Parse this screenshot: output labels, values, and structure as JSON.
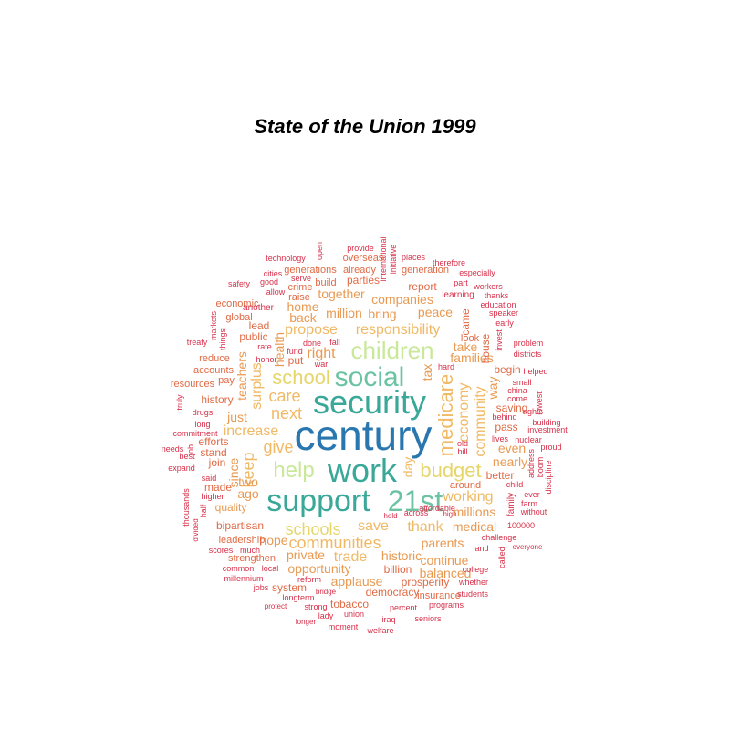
{
  "title": "State of the Union 1999",
  "palette": {
    "darkblue": "#2a77b0",
    "teal": "#3aa898",
    "green": "#6cc3a3",
    "lightgreen": "#c9e89a",
    "yellow": "#e6d66a",
    "lightorange": "#f0b965",
    "orange": "#e99a52",
    "redorange": "#e06a45",
    "red": "#d7304a"
  },
  "words": [
    {
      "text": "century",
      "color": "darkblue"
    },
    {
      "text": "security",
      "color": "teal"
    },
    {
      "text": "support",
      "color": "teal"
    },
    {
      "text": "work",
      "color": "teal"
    },
    {
      "text": "social",
      "color": "green"
    },
    {
      "text": "21st",
      "color": "green"
    },
    {
      "text": "children",
      "color": "lightgreen"
    },
    {
      "text": "help",
      "color": "lightgreen"
    },
    {
      "text": "school",
      "color": "yellow"
    },
    {
      "text": "schools",
      "color": "yellow"
    },
    {
      "text": "budget",
      "color": "yellow"
    },
    {
      "text": "medicare",
      "color": "lightorange"
    },
    {
      "text": "communities",
      "color": "lightorange"
    },
    {
      "text": "responsibility",
      "color": "lightorange"
    },
    {
      "text": "care",
      "color": "lightorange"
    },
    {
      "text": "next",
      "color": "lightorange"
    },
    {
      "text": "give",
      "color": "lightorange"
    },
    {
      "text": "keep",
      "color": "lightorange"
    },
    {
      "text": "increase",
      "color": "lightorange"
    },
    {
      "text": "economy",
      "color": "lightorange"
    },
    {
      "text": "community",
      "color": "lightorange"
    },
    {
      "text": "thank",
      "color": "lightorange"
    },
    {
      "text": "save",
      "color": "lightorange"
    },
    {
      "text": "working",
      "color": "lightorange"
    },
    {
      "text": "trade",
      "color": "lightorange"
    },
    {
      "text": "surplus",
      "color": "lightorange"
    },
    {
      "text": "propose",
      "color": "lightorange"
    },
    {
      "text": "day",
      "color": "lightorange"
    },
    {
      "text": "health",
      "color": "orange"
    },
    {
      "text": "right",
      "color": "orange"
    },
    {
      "text": "teachers",
      "color": "orange"
    },
    {
      "text": "since",
      "color": "orange"
    },
    {
      "text": "nearly",
      "color": "orange"
    },
    {
      "text": "even",
      "color": "orange"
    },
    {
      "text": "take",
      "color": "orange"
    },
    {
      "text": "families",
      "color": "orange"
    },
    {
      "text": "parents",
      "color": "orange"
    },
    {
      "text": "hope",
      "color": "orange"
    },
    {
      "text": "private",
      "color": "orange"
    },
    {
      "text": "historic",
      "color": "orange"
    },
    {
      "text": "opportunity",
      "color": "orange"
    },
    {
      "text": "continue",
      "color": "orange"
    },
    {
      "text": "balanced",
      "color": "orange"
    },
    {
      "text": "applause",
      "color": "orange"
    },
    {
      "text": "medical",
      "color": "orange"
    },
    {
      "text": "millions",
      "color": "orange"
    },
    {
      "text": "million",
      "color": "orange"
    },
    {
      "text": "bring",
      "color": "orange"
    },
    {
      "text": "peace",
      "color": "orange"
    },
    {
      "text": "together",
      "color": "orange"
    },
    {
      "text": "companies",
      "color": "orange"
    },
    {
      "text": "back",
      "color": "orange"
    },
    {
      "text": "home",
      "color": "orange"
    },
    {
      "text": "just",
      "color": "orange"
    },
    {
      "text": "two",
      "color": "orange"
    },
    {
      "text": "ago",
      "color": "orange"
    },
    {
      "text": "quality",
      "color": "orange"
    },
    {
      "text": "way",
      "color": "orange"
    },
    {
      "text": "tax",
      "color": "orange"
    },
    {
      "text": "better",
      "color": "redorange"
    },
    {
      "text": "pass",
      "color": "redorange"
    },
    {
      "text": "saving",
      "color": "redorange"
    },
    {
      "text": "begin",
      "color": "redorange"
    },
    {
      "text": "house",
      "color": "redorange"
    },
    {
      "text": "came",
      "color": "redorange"
    },
    {
      "text": "look",
      "color": "redorange"
    },
    {
      "text": "report",
      "color": "redorange"
    },
    {
      "text": "parties",
      "color": "redorange"
    },
    {
      "text": "already",
      "color": "redorange"
    },
    {
      "text": "overseas",
      "color": "redorange"
    },
    {
      "text": "generation",
      "color": "redorange"
    },
    {
      "text": "generations",
      "color": "redorange"
    },
    {
      "text": "build",
      "color": "redorange"
    },
    {
      "text": "crime",
      "color": "redorange"
    },
    {
      "text": "raise",
      "color": "redorange"
    },
    {
      "text": "lead",
      "color": "redorange"
    },
    {
      "text": "public",
      "color": "redorange"
    },
    {
      "text": "put",
      "color": "redorange"
    },
    {
      "text": "history",
      "color": "redorange"
    },
    {
      "text": "efforts",
      "color": "redorange"
    },
    {
      "text": "stand",
      "color": "redorange"
    },
    {
      "text": "join",
      "color": "redorange"
    },
    {
      "text": "made",
      "color": "redorange"
    },
    {
      "text": "bipartisan",
      "color": "redorange"
    },
    {
      "text": "leadership",
      "color": "redorange"
    },
    {
      "text": "strengthen",
      "color": "redorange"
    },
    {
      "text": "system",
      "color": "redorange"
    },
    {
      "text": "billion",
      "color": "redorange"
    },
    {
      "text": "prosperity",
      "color": "redorange"
    },
    {
      "text": "democracy",
      "color": "redorange"
    },
    {
      "text": "tobacco",
      "color": "redorange"
    },
    {
      "text": "insurance",
      "color": "redorange"
    },
    {
      "text": "around",
      "color": "redorange"
    },
    {
      "text": "economic",
      "color": "redorange"
    },
    {
      "text": "global",
      "color": "redorange"
    },
    {
      "text": "pay",
      "color": "redorange"
    },
    {
      "text": "accounts",
      "color": "redorange"
    },
    {
      "text": "resources",
      "color": "redorange"
    },
    {
      "text": "reduce",
      "color": "redorange"
    },
    {
      "text": "technology",
      "color": "red"
    },
    {
      "text": "open",
      "color": "red"
    },
    {
      "text": "provide",
      "color": "red"
    },
    {
      "text": "international",
      "color": "red"
    },
    {
      "text": "initiative",
      "color": "red"
    },
    {
      "text": "places",
      "color": "red"
    },
    {
      "text": "therefore",
      "color": "red"
    },
    {
      "text": "cities",
      "color": "red"
    },
    {
      "text": "serve",
      "color": "red"
    },
    {
      "text": "especially",
      "color": "red"
    },
    {
      "text": "part",
      "color": "red"
    },
    {
      "text": "workers",
      "color": "red"
    },
    {
      "text": "safety",
      "color": "red"
    },
    {
      "text": "good",
      "color": "red"
    },
    {
      "text": "allow",
      "color": "red"
    },
    {
      "text": "learning",
      "color": "red"
    },
    {
      "text": "thanks",
      "color": "red"
    },
    {
      "text": "education",
      "color": "red"
    },
    {
      "text": "another",
      "color": "red"
    },
    {
      "text": "speaker",
      "color": "red"
    },
    {
      "text": "markets",
      "color": "red"
    },
    {
      "text": "things",
      "color": "red"
    },
    {
      "text": "early",
      "color": "red"
    },
    {
      "text": "treaty",
      "color": "red"
    },
    {
      "text": "rate",
      "color": "red"
    },
    {
      "text": "done",
      "color": "red"
    },
    {
      "text": "fall",
      "color": "red"
    },
    {
      "text": "fund",
      "color": "red"
    },
    {
      "text": "invest",
      "color": "red"
    },
    {
      "text": "problem",
      "color": "red"
    },
    {
      "text": "districts",
      "color": "red"
    },
    {
      "text": "honor",
      "color": "red"
    },
    {
      "text": "war",
      "color": "red"
    },
    {
      "text": "hard",
      "color": "red"
    },
    {
      "text": "helped",
      "color": "red"
    },
    {
      "text": "small",
      "color": "red"
    },
    {
      "text": "china",
      "color": "red"
    },
    {
      "text": "come",
      "color": "red"
    },
    {
      "text": "truly",
      "color": "red"
    },
    {
      "text": "drugs",
      "color": "red"
    },
    {
      "text": "lowest",
      "color": "red"
    },
    {
      "text": "rights",
      "color": "red"
    },
    {
      "text": "building",
      "color": "red"
    },
    {
      "text": "investment",
      "color": "red"
    },
    {
      "text": "long",
      "color": "red"
    },
    {
      "text": "commitment",
      "color": "red"
    },
    {
      "text": "behind",
      "color": "red"
    },
    {
      "text": "nuclear",
      "color": "red"
    },
    {
      "text": "needs",
      "color": "red"
    },
    {
      "text": "job",
      "color": "red"
    },
    {
      "text": "best",
      "color": "red"
    },
    {
      "text": "lives",
      "color": "red"
    },
    {
      "text": "old",
      "color": "red"
    },
    {
      "text": "bill",
      "color": "red"
    },
    {
      "text": "proud",
      "color": "red"
    },
    {
      "text": "address",
      "color": "red"
    },
    {
      "text": "boom",
      "color": "red"
    },
    {
      "text": "discipline",
      "color": "red"
    },
    {
      "text": "expand",
      "color": "red"
    },
    {
      "text": "said",
      "color": "red"
    },
    {
      "text": "higher",
      "color": "red"
    },
    {
      "text": "child",
      "color": "red"
    },
    {
      "text": "ever",
      "color": "red"
    },
    {
      "text": "farm",
      "color": "red"
    },
    {
      "text": "without",
      "color": "red"
    },
    {
      "text": "thousands",
      "color": "red"
    },
    {
      "text": "half",
      "color": "red"
    },
    {
      "text": "affordable",
      "color": "red"
    },
    {
      "text": "across",
      "color": "red"
    },
    {
      "text": "held",
      "color": "red"
    },
    {
      "text": "high",
      "color": "red"
    },
    {
      "text": "family",
      "color": "red"
    },
    {
      "text": "100000",
      "color": "red"
    },
    {
      "text": "divided",
      "color": "red"
    },
    {
      "text": "scores",
      "color": "red"
    },
    {
      "text": "much",
      "color": "red"
    },
    {
      "text": "challenge",
      "color": "red"
    },
    {
      "text": "land",
      "color": "red"
    },
    {
      "text": "everyone",
      "color": "red"
    },
    {
      "text": "called",
      "color": "red"
    },
    {
      "text": "common",
      "color": "red"
    },
    {
      "text": "local",
      "color": "red"
    },
    {
      "text": "millennium",
      "color": "red"
    },
    {
      "text": "reform",
      "color": "red"
    },
    {
      "text": "jobs",
      "color": "red"
    },
    {
      "text": "college",
      "color": "red"
    },
    {
      "text": "whether",
      "color": "red"
    },
    {
      "text": "bridge",
      "color": "red"
    },
    {
      "text": "longterm",
      "color": "red"
    },
    {
      "text": "students",
      "color": "red"
    },
    {
      "text": "protect",
      "color": "red"
    },
    {
      "text": "strong",
      "color": "red"
    },
    {
      "text": "percent",
      "color": "red"
    },
    {
      "text": "programs",
      "color": "red"
    },
    {
      "text": "lady",
      "color": "red"
    },
    {
      "text": "union",
      "color": "red"
    },
    {
      "text": "iraq",
      "color": "red"
    },
    {
      "text": "seniors",
      "color": "red"
    },
    {
      "text": "longer",
      "color": "red"
    },
    {
      "text": "moment",
      "color": "red"
    },
    {
      "text": "welfare",
      "color": "red"
    }
  ]
}
